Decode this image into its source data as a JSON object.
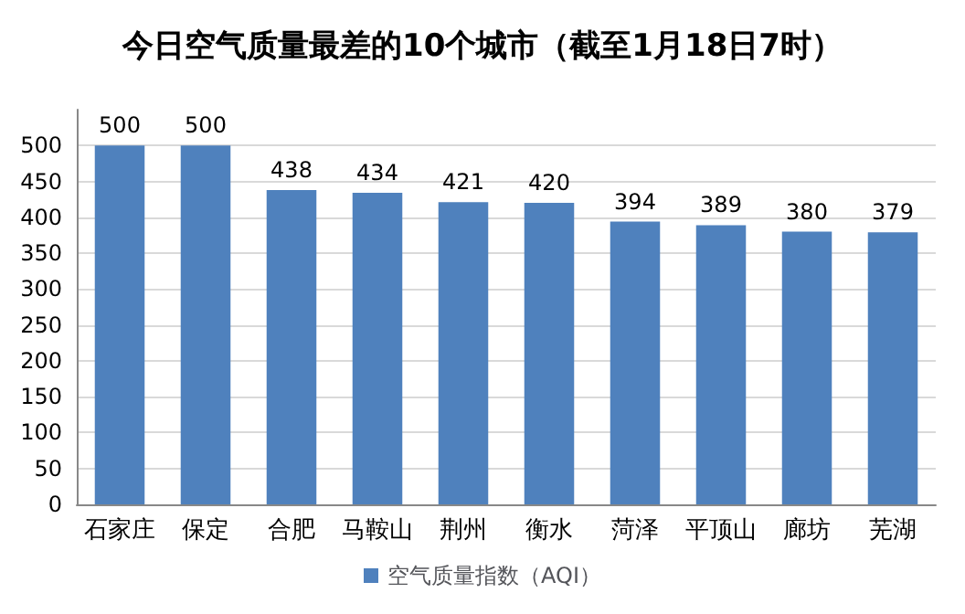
{
  "chart_data": {
    "type": "bar",
    "title": "今日空气质量最差的10个城市（截至1月18日7时）",
    "categories": [
      "石家庄",
      "保定",
      "合肥",
      "马鞍山",
      "荆州",
      "衡水",
      "菏泽",
      "平顶山",
      "廊坊",
      "芜湖"
    ],
    "series": [
      {
        "name": "空气质量指数（AQI）",
        "color": "#4f81bd",
        "values": [
          500,
          500,
          438,
          434,
          421,
          420,
          394,
          389,
          380,
          379
        ]
      }
    ],
    "ylim": [
      0,
      550
    ],
    "yticks": [
      0,
      50,
      100,
      150,
      200,
      250,
      300,
      350,
      400,
      450,
      500
    ],
    "grid": "y",
    "legend": "bottom",
    "data_labels": true
  }
}
